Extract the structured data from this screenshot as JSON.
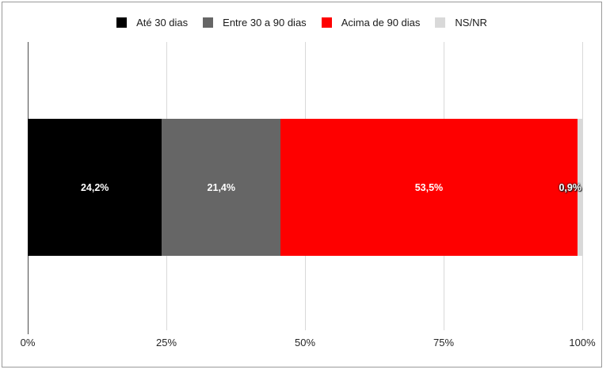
{
  "chart_data": {
    "type": "bar",
    "subtype": "horizontal-stacked-100",
    "title": "",
    "xlabel": "",
    "ylabel": "",
    "legend_position": "top",
    "grid": true,
    "series": [
      {
        "name": "Até 30 dias",
        "value": 24.2,
        "label": "24,2%",
        "color": "#000000"
      },
      {
        "name": "Entre 30 a 90 dias",
        "value": 21.4,
        "label": "21,4%",
        "color": "#666666"
      },
      {
        "name": "Acima de 90 dias",
        "value": 53.5,
        "label": "53,5%",
        "color": "#fe0000"
      },
      {
        "name": "NS/NR",
        "value": 0.9,
        "label": "0,9%",
        "color": "#d9d9d9"
      }
    ],
    "x_axis": {
      "range": [
        0,
        100
      ],
      "ticks": [
        {
          "label": "0%",
          "value": 0
        },
        {
          "label": "25%",
          "value": 25
        },
        {
          "label": "50%",
          "value": 50
        },
        {
          "label": "75%",
          "value": 75
        },
        {
          "label": "100%",
          "value": 100
        }
      ]
    },
    "colors": {
      "frame_border": "#9a9a9a",
      "gridline": "#d9d9d9",
      "axis_line": "#4d4d4d",
      "data_label": "#ffffff"
    }
  }
}
